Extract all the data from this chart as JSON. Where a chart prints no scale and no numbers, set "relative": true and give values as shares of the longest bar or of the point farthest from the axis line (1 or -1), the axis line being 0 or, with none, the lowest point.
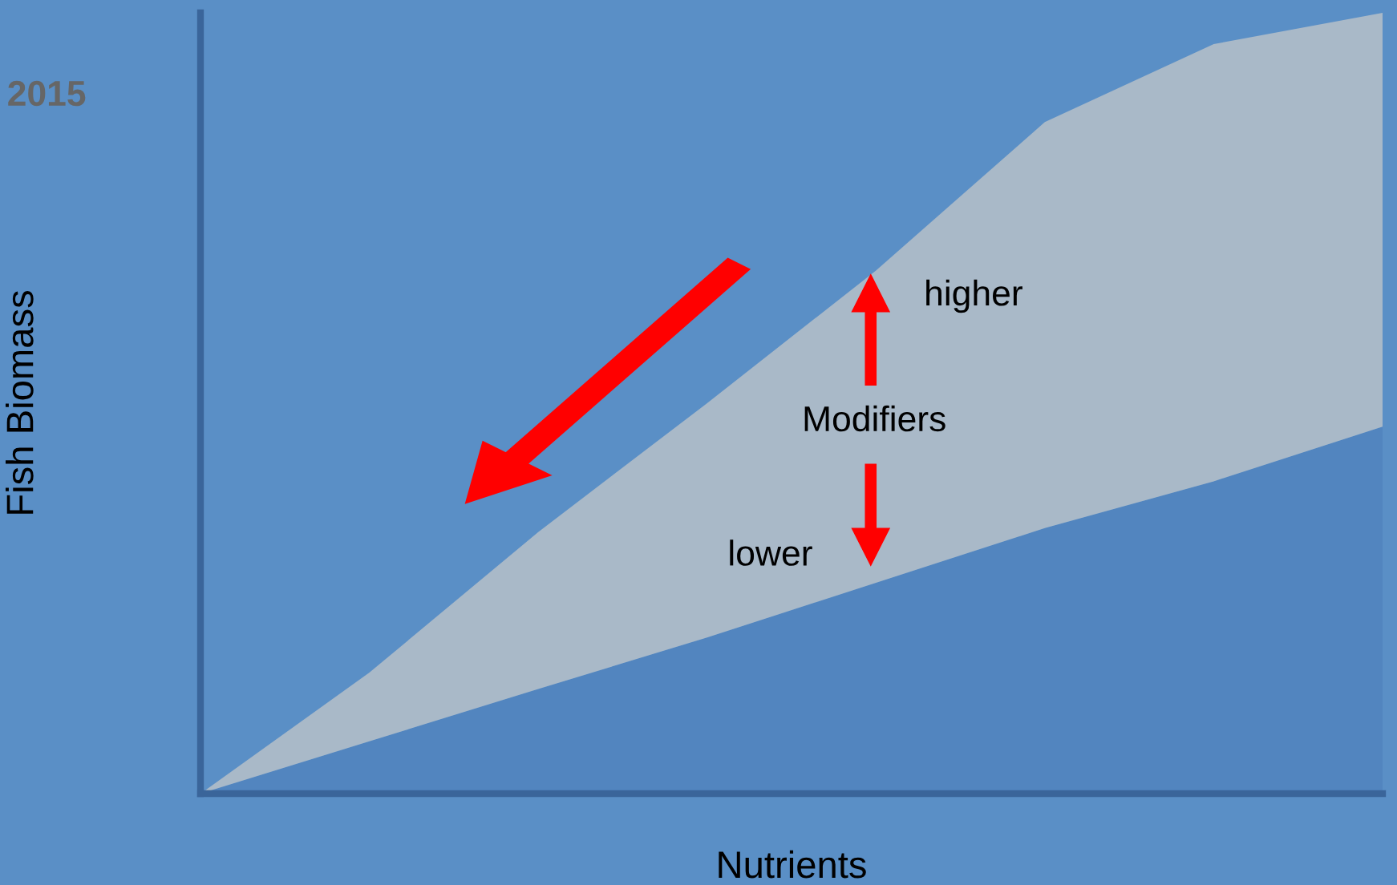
{
  "chart_data": {
    "type": "area",
    "relative": true,
    "xlabel": "Nutrients",
    "ylabel": "Fish Biomass",
    "categories": [
      null,
      null,
      null,
      null,
      null,
      null,
      null,
      null
    ],
    "series": [
      {
        "color": "#5285bf",
        "values": [
          0,
          0.067,
          0.134,
          0.2,
          0.27,
          0.34,
          0.4,
          0.47
        ]
      },
      {
        "color": "#a9b9c8",
        "values": [
          0,
          0.088,
          0.201,
          0.3,
          0.4,
          0.52,
          0.56,
          0.53
        ]
      }
    ],
    "annotations": [
      "higher",
      "Modifiers",
      "lower",
      "2015"
    ],
    "stacked": true,
    "grid": false,
    "legend": false
  }
}
